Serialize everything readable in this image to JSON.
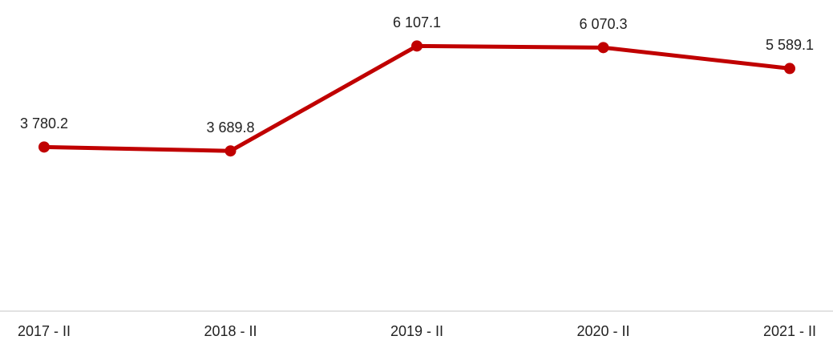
{
  "chart_data": {
    "type": "line",
    "categories": [
      "2017 - II",
      "2018 - II",
      "2019 - II",
      "2020 - II",
      "2021 - II"
    ],
    "series": [
      {
        "color": "#c00000",
        "values": [
          3780.2,
          3689.8,
          6107.1,
          6070.3,
          5589.1
        ],
        "value_labels": [
          "3 780.2",
          "3 689.8",
          "6 107.1",
          "6 070.3",
          "5 589.1"
        ]
      }
    ],
    "ylim": [
      0,
      7000
    ]
  }
}
